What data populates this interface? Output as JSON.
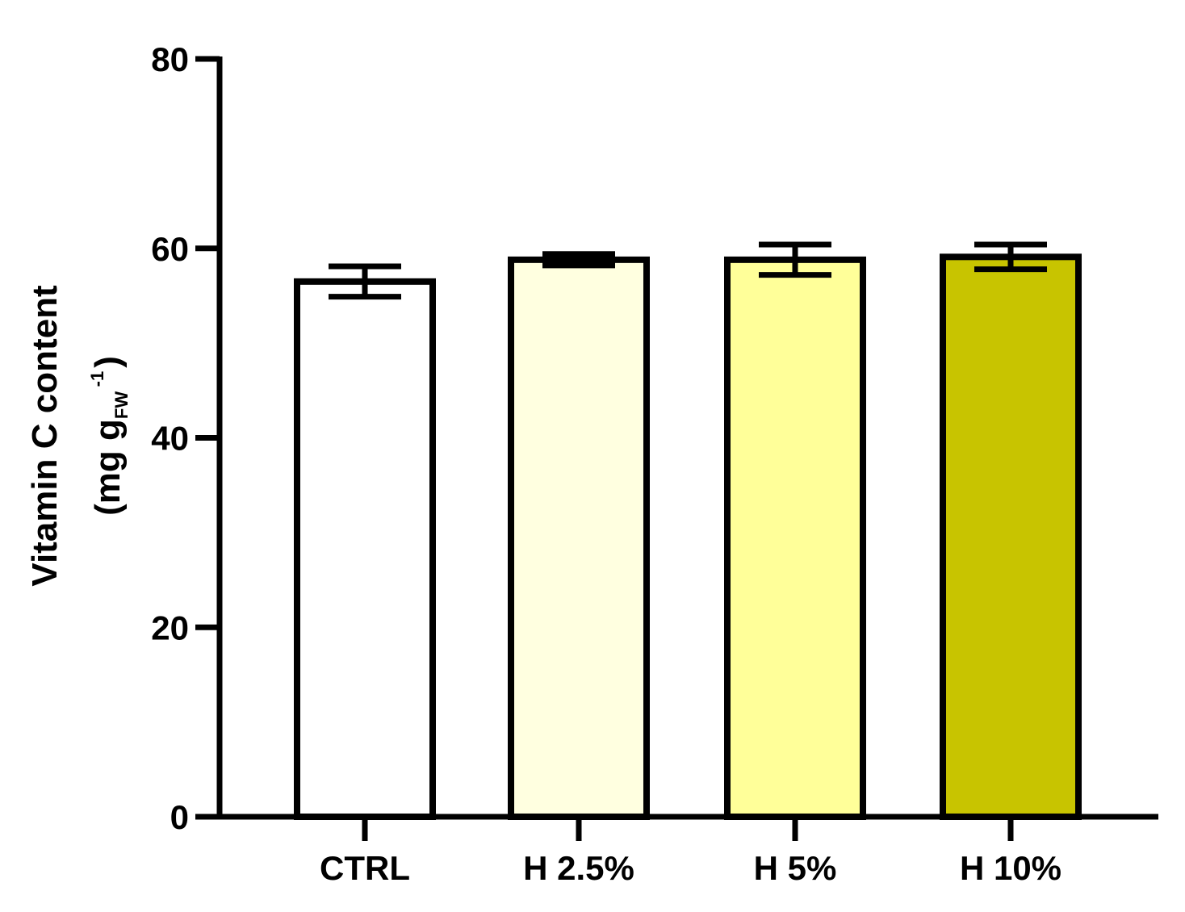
{
  "chart_data": {
    "type": "bar",
    "title": "",
    "categories": [
      "CTRL",
      "H 2.5%",
      "H 5%",
      "H 10%"
    ],
    "values": [
      56.5,
      58.8,
      58.8,
      59.1
    ],
    "errors": [
      1.6,
      0.6,
      1.6,
      1.3
    ],
    "colors": [
      "#ffffff",
      "#ffffe0",
      "#ffff99",
      "#c8c400"
    ],
    "xlabel": "",
    "ylabel": {
      "line1": "Vitamin C content",
      "line2_prefix": "(mg g",
      "line2_sub": "FW",
      "line2_sup": "-1",
      "line2_suffix": ")"
    },
    "ylim": [
      0,
      80
    ],
    "yticks": [
      0,
      20,
      40,
      60,
      80
    ],
    "grid": false
  }
}
